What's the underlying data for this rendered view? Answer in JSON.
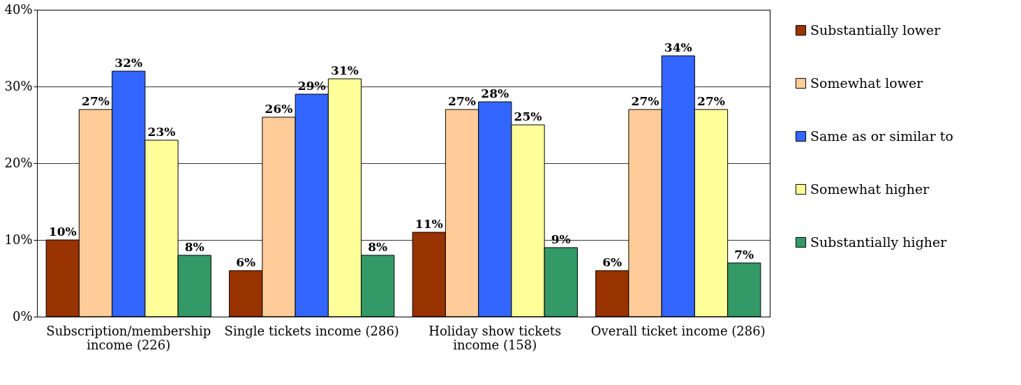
{
  "chart_data": {
    "type": "bar",
    "categories": [
      "Subscription/membership income (226)",
      "Single tickets income (286)",
      "Holiday show tickets income (158)",
      "Overall ticket income (286)"
    ],
    "series": [
      {
        "name": "Substantially lower",
        "color": "#993300",
        "values": [
          10,
          6,
          11,
          6
        ],
        "value_labels": [
          "10%",
          "6%",
          "11%",
          "6%"
        ]
      },
      {
        "name": "Somewhat lower",
        "color": "#ffcc99",
        "values": [
          27,
          26,
          27,
          27
        ],
        "value_labels": [
          "27%",
          "26%",
          "27%",
          "27%"
        ]
      },
      {
        "name": "Same as or similar to",
        "color": "#3366ff",
        "values": [
          32,
          29,
          28,
          34
        ],
        "value_labels": [
          "32%",
          "29%",
          "28%",
          "34%"
        ]
      },
      {
        "name": "Somewhat higher",
        "color": "#ffff99",
        "values": [
          23,
          31,
          25,
          27
        ],
        "value_labels": [
          "23%",
          "31%",
          "25%",
          "27%"
        ]
      },
      {
        "name": "Substantially higher",
        "color": "#339966",
        "values": [
          8,
          8,
          9,
          7
        ],
        "value_labels": [
          "8%",
          "8%",
          "9%",
          "7%"
        ]
      }
    ],
    "ylim": [
      0,
      40
    ],
    "yticks": [
      {
        "value": 0,
        "label": "0%"
      },
      {
        "value": 10,
        "label": "10%"
      },
      {
        "value": 20,
        "label": "20%"
      },
      {
        "value": 30,
        "label": "30%"
      },
      {
        "value": 40,
        "label": "40%"
      }
    ],
    "grid": "y",
    "legend": "right"
  }
}
